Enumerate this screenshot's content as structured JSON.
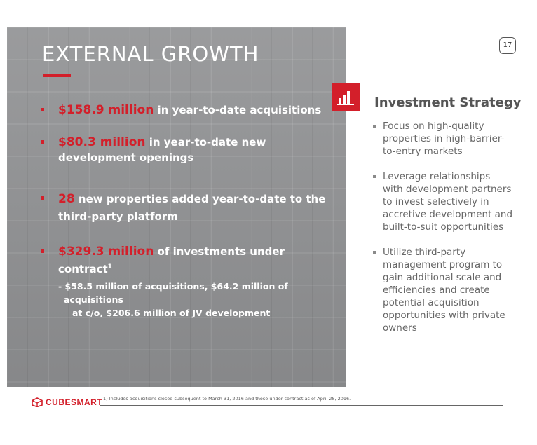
{
  "title": "EXTERNAL GROWTH",
  "page_number": "17",
  "bullets": [
    {
      "highlight": "$158.9 million",
      "text": " in year-to-date acquisitions"
    },
    {
      "highlight": "$80.3 million",
      "text": " in year-to-date new development openings"
    },
    {
      "highlight": "28",
      "text": " new properties added year-to-date to the third-party platform"
    },
    {
      "highlight": "$329.3 million",
      "text": " of investments under contract",
      "sup": "1",
      "subnote_line1": "- $58.5 million of acquisitions, $64.2 million of acquisitions",
      "subnote_line2": "at c/o, $206.6 million of JV development"
    }
  ],
  "strategy": {
    "title": "Investment Strategy",
    "items": [
      "Focus on high-quality properties in high-barrier-to-entry markets",
      "Leverage relationships with development partners to invest selectively in accretive development and built-to-suit opportunities",
      "Utilize third-party management program to gain additional scale and efficiencies and create potential acquisition opportunities with private owners"
    ]
  },
  "footnote": "1) Includes acquisitions closed subsequent to March 31, 2016 and those under contract as of April 28, 2016.",
  "logo_text": "CUBESMART",
  "icons": {
    "badge": "bar-chart-icon",
    "logo": "cube-logo-icon"
  },
  "colors": {
    "accent": "#d31f2a",
    "hero_bg": "#8f9092",
    "body_text": "#666666"
  }
}
